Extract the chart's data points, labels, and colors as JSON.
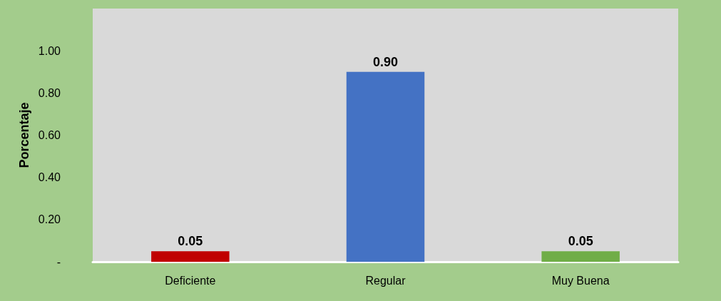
{
  "chart_data": {
    "type": "bar",
    "ylabel": "Porcentaje",
    "categories": [
      "Deficiente",
      "Regular",
      "Muy Buena"
    ],
    "values": [
      0.05,
      0.9,
      0.05
    ],
    "colors": [
      "#c00000",
      "#4472c4",
      "#70ad47"
    ],
    "value_labels": [
      "0.05",
      "0.90",
      "0.05"
    ],
    "ylim": [
      0,
      1.2
    ],
    "yticks": [
      {
        "value": 0,
        "label": "-"
      },
      {
        "value": 0.2,
        "label": "0.20"
      },
      {
        "value": 0.4,
        "label": "0.40"
      },
      {
        "value": 0.6,
        "label": "0.60"
      },
      {
        "value": 0.8,
        "label": "0.80"
      },
      {
        "value": 1,
        "label": "1.00"
      }
    ],
    "grid": false
  }
}
